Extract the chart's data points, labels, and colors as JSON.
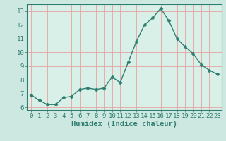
{
  "x": [
    0,
    1,
    2,
    3,
    4,
    5,
    6,
    7,
    8,
    9,
    10,
    11,
    12,
    13,
    14,
    15,
    16,
    17,
    18,
    19,
    20,
    21,
    22,
    23
  ],
  "y": [
    6.9,
    6.5,
    6.2,
    6.2,
    6.7,
    6.8,
    7.3,
    7.4,
    7.3,
    7.4,
    8.2,
    7.8,
    9.3,
    10.8,
    12.0,
    12.5,
    13.2,
    12.3,
    11.0,
    10.4,
    9.9,
    9.1,
    8.7,
    8.4
  ],
  "line_color": "#2e7d6e",
  "bg_color": "#cce8e0",
  "plot_bg_color": "#d8f0e8",
  "grid_color": "#e8a0a0",
  "xlabel": "Humidex (Indice chaleur)",
  "ylim": [
    5.8,
    13.5
  ],
  "xlim": [
    -0.5,
    23.5
  ],
  "yticks": [
    6,
    7,
    8,
    9,
    10,
    11,
    12,
    13
  ],
  "xticks": [
    0,
    1,
    2,
    3,
    4,
    5,
    6,
    7,
    8,
    9,
    10,
    11,
    12,
    13,
    14,
    15,
    16,
    17,
    18,
    19,
    20,
    21,
    22,
    23
  ],
  "xlabel_fontsize": 7.5,
  "tick_fontsize": 6.5,
  "marker": "D",
  "marker_size": 2.5,
  "line_width": 1.0
}
